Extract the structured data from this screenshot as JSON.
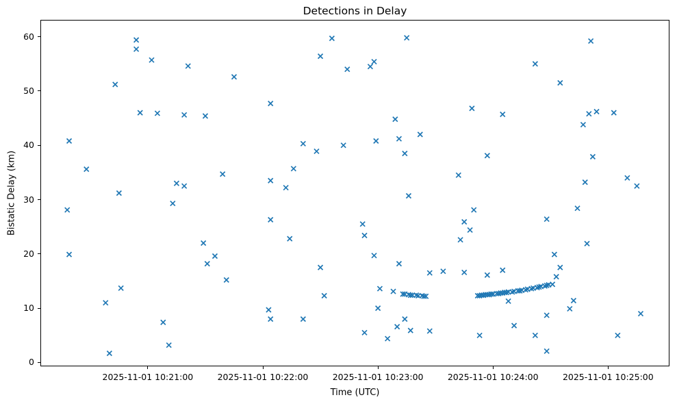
{
  "chart_data": {
    "type": "scatter",
    "title": "Detections in Delay",
    "xlabel": "Time (UTC)",
    "ylabel": "Bistatic Delay (km)",
    "date": "2025-11-01",
    "marker": "x",
    "marker_color": "#1f77b4",
    "grid": false,
    "legend": null,
    "x_axis": {
      "xlim": [
        "10:20:04",
        "10:25:32"
      ],
      "tick_times": [
        "10:21:00",
        "10:22:00",
        "10:23:00",
        "10:24:00",
        "10:25:00"
      ],
      "tick_labels": [
        "2025-11-01 10:21:00",
        "2025-11-01 10:22:00",
        "2025-11-01 10:23:00",
        "2025-11-01 10:24:00",
        "2025-11-01 10:25:00"
      ]
    },
    "y_axis": {
      "ylim": [
        -0.7,
        63.1
      ],
      "ticks": [
        0,
        10,
        20,
        30,
        40,
        50,
        60
      ]
    },
    "points": [
      [
        "10:20:18",
        28.1
      ],
      [
        "10:20:19",
        40.8
      ],
      [
        "10:20:19",
        19.9
      ],
      [
        "10:20:28",
        35.6
      ],
      [
        "10:20:38",
        11.0
      ],
      [
        "10:20:40",
        1.7
      ],
      [
        "10:20:43",
        51.2
      ],
      [
        "10:20:45",
        31.2
      ],
      [
        "10:20:46",
        13.7
      ],
      [
        "10:20:54",
        59.4
      ],
      [
        "10:20:54",
        57.7
      ],
      [
        "10:20:56",
        46.0
      ],
      [
        "10:21:02",
        55.7
      ],
      [
        "10:21:05",
        45.9
      ],
      [
        "10:21:08",
        7.4
      ],
      [
        "10:21:11",
        3.2
      ],
      [
        "10:21:13",
        29.3
      ],
      [
        "10:21:15",
        33.0
      ],
      [
        "10:21:19",
        45.6
      ],
      [
        "10:21:19",
        32.5
      ],
      [
        "10:21:21",
        54.6
      ],
      [
        "10:21:29",
        22.0
      ],
      [
        "10:21:30",
        45.4
      ],
      [
        "10:21:31",
        18.2
      ],
      [
        "10:21:35",
        19.6
      ],
      [
        "10:21:39",
        34.7
      ],
      [
        "10:21:41",
        15.2
      ],
      [
        "10:21:45",
        52.6
      ],
      [
        "10:22:03",
        9.7
      ],
      [
        "10:22:04",
        47.7
      ],
      [
        "10:22:04",
        33.5
      ],
      [
        "10:22:04",
        26.3
      ],
      [
        "10:22:04",
        8.0
      ],
      [
        "10:22:12",
        32.2
      ],
      [
        "10:22:14",
        22.8
      ],
      [
        "10:22:16",
        35.7
      ],
      [
        "10:22:21",
        40.3
      ],
      [
        "10:22:21",
        8.0
      ],
      [
        "10:22:28",
        38.9
      ],
      [
        "10:22:30",
        56.4
      ],
      [
        "10:22:30",
        17.5
      ],
      [
        "10:22:32",
        12.3
      ],
      [
        "10:22:36",
        59.7
      ],
      [
        "10:22:42",
        40.0
      ],
      [
        "10:22:44",
        54.0
      ],
      [
        "10:22:52",
        25.5
      ],
      [
        "10:22:53",
        23.4
      ],
      [
        "10:22:53",
        5.5
      ],
      [
        "10:22:56",
        54.5
      ],
      [
        "10:22:58",
        55.4
      ],
      [
        "10:22:58",
        19.7
      ],
      [
        "10:22:59",
        40.8
      ],
      [
        "10:23:00",
        10.0
      ],
      [
        "10:23:01",
        13.6
      ],
      [
        "10:23:05",
        4.4
      ],
      [
        "10:23:08",
        13.1
      ],
      [
        "10:23:09",
        44.8
      ],
      [
        "10:23:10",
        6.6
      ],
      [
        "10:23:11",
        41.2
      ],
      [
        "10:23:11",
        18.2
      ],
      [
        "10:23:13",
        12.6
      ],
      [
        "10:23:14",
        12.6
      ],
      [
        "10:23:14",
        38.5
      ],
      [
        "10:23:14",
        8.0
      ],
      [
        "10:23:15",
        59.8
      ],
      [
        "10:23:16",
        12.5
      ],
      [
        "10:23:16",
        30.7
      ],
      [
        "10:23:17",
        12.4
      ],
      [
        "10:23:17",
        5.9
      ],
      [
        "10:23:18",
        12.4
      ],
      [
        "10:23:20",
        12.4
      ],
      [
        "10:23:21",
        12.3
      ],
      [
        "10:23:22",
        42.0
      ],
      [
        "10:23:23",
        12.3
      ],
      [
        "10:23:24",
        12.2
      ],
      [
        "10:23:25",
        12.2
      ],
      [
        "10:23:27",
        16.5
      ],
      [
        "10:23:27",
        5.8
      ],
      [
        "10:23:34",
        16.8
      ],
      [
        "10:23:42",
        34.5
      ],
      [
        "10:23:43",
        22.6
      ],
      [
        "10:23:45",
        25.9
      ],
      [
        "10:23:45",
        16.6
      ],
      [
        "10:23:48",
        24.4
      ],
      [
        "10:23:49",
        46.8
      ],
      [
        "10:23:50",
        28.1
      ],
      [
        "10:23:52",
        12.3
      ],
      [
        "10:23:53",
        12.3
      ],
      [
        "10:23:53",
        5.0
      ],
      [
        "10:23:54",
        12.4
      ],
      [
        "10:23:55",
        12.4
      ],
      [
        "10:23:55",
        12.4
      ],
      [
        "10:23:56",
        12.5
      ],
      [
        "10:23:57",
        12.5
      ],
      [
        "10:23:57",
        38.1
      ],
      [
        "10:23:57",
        16.1
      ],
      [
        "10:23:58",
        12.5
      ],
      [
        "10:23:58",
        12.5
      ],
      [
        "10:23:59",
        12.6
      ],
      [
        "10:24:00",
        12.6
      ],
      [
        "10:24:00",
        12.6
      ],
      [
        "10:24:02",
        12.7
      ],
      [
        "10:24:03",
        12.7
      ],
      [
        "10:24:04",
        12.8
      ],
      [
        "10:24:05",
        12.8
      ],
      [
        "10:24:05",
        45.7
      ],
      [
        "10:24:05",
        17.0
      ],
      [
        "10:24:06",
        12.9
      ],
      [
        "10:24:07",
        12.9
      ],
      [
        "10:24:08",
        13.0
      ],
      [
        "10:24:08",
        11.3
      ],
      [
        "10:24:10",
        13.0
      ],
      [
        "10:24:11",
        13.1
      ],
      [
        "10:24:11",
        6.8
      ],
      [
        "10:24:13",
        13.2
      ],
      [
        "10:24:14",
        13.2
      ],
      [
        "10:24:15",
        13.3
      ],
      [
        "10:24:17",
        13.4
      ],
      [
        "10:24:18",
        13.5
      ],
      [
        "10:24:20",
        13.6
      ],
      [
        "10:24:21",
        13.7
      ],
      [
        "10:24:22",
        55.0
      ],
      [
        "10:24:22",
        5.0
      ],
      [
        "10:24:23",
        13.8
      ],
      [
        "10:24:24",
        13.9
      ],
      [
        "10:24:25",
        14.0
      ],
      [
        "10:24:27",
        14.1
      ],
      [
        "10:24:28",
        14.2
      ],
      [
        "10:24:28",
        26.4
      ],
      [
        "10:24:28",
        8.7
      ],
      [
        "10:24:28",
        2.1
      ],
      [
        "10:24:29",
        14.3
      ],
      [
        "10:24:31",
        14.4
      ],
      [
        "10:24:32",
        19.9
      ],
      [
        "10:24:33",
        15.8
      ],
      [
        "10:24:35",
        51.5
      ],
      [
        "10:24:35",
        17.5
      ],
      [
        "10:24:40",
        9.9
      ],
      [
        "10:24:42",
        11.4
      ],
      [
        "10:24:44",
        28.4
      ],
      [
        "10:24:47",
        43.8
      ],
      [
        "10:24:48",
        33.2
      ],
      [
        "10:24:49",
        21.9
      ],
      [
        "10:24:50",
        45.8
      ],
      [
        "10:24:51",
        59.2
      ],
      [
        "10:24:52",
        37.9
      ],
      [
        "10:24:54",
        46.2
      ],
      [
        "10:25:03",
        46.0
      ],
      [
        "10:25:05",
        5.0
      ],
      [
        "10:25:10",
        34.0
      ],
      [
        "10:25:15",
        32.5
      ],
      [
        "10:25:17",
        9.0
      ]
    ]
  }
}
